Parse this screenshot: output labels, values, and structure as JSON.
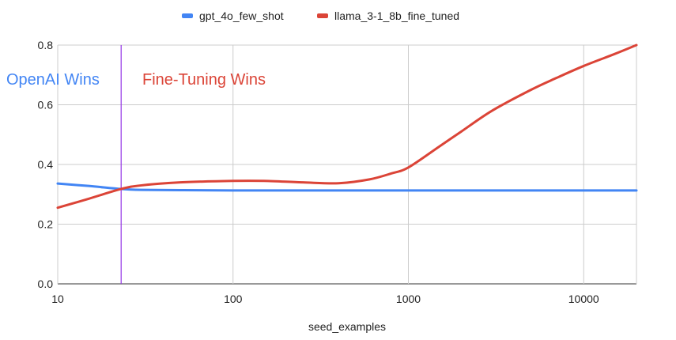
{
  "chart_data": {
    "type": "line",
    "x_scale": "log",
    "xlabel": "seed_examples",
    "ylabel": "",
    "xlim": [
      10,
      20000
    ],
    "ylim": [
      0,
      0.8
    ],
    "x_ticks": [
      10,
      100,
      1000,
      10000
    ],
    "x_tick_labels": [
      "10",
      "100",
      "1000",
      "10000"
    ],
    "y_ticks": [
      0,
      0.2,
      0.4,
      0.6,
      0.8
    ],
    "y_tick_labels": [
      "0.0",
      "0.2",
      "0.4",
      "0.6",
      "0.8"
    ],
    "grid": true,
    "legend_position": "top-center",
    "series": [
      {
        "name": "gpt_4o_few_shot",
        "color": "#4285f4",
        "x": [
          10,
          15,
          23,
          30,
          50,
          100,
          300,
          1000,
          3000,
          10000,
          20000
        ],
        "y": [
          0.336,
          0.328,
          0.318,
          0.315,
          0.314,
          0.313,
          0.313,
          0.313,
          0.313,
          0.313,
          0.313
        ]
      },
      {
        "name": "llama_3-1_8b_fine_tuned",
        "color": "#db4437",
        "x": [
          10,
          15,
          23,
          30,
          50,
          100,
          150,
          250,
          400,
          600,
          800,
          1000,
          1500,
          2000,
          3000,
          5000,
          7000,
          10000,
          15000,
          20000
        ],
        "y": [
          0.255,
          0.285,
          0.318,
          0.33,
          0.34,
          0.345,
          0.345,
          0.34,
          0.337,
          0.35,
          0.37,
          0.39,
          0.46,
          0.51,
          0.58,
          0.65,
          0.69,
          0.73,
          0.77,
          0.8
        ]
      }
    ],
    "vertical_marker": {
      "x": 23,
      "color": "#9334e6"
    },
    "annotations": [
      {
        "text": "OpenAI Wins",
        "color": "#4285f4"
      },
      {
        "text": "Fine-Tuning Wins",
        "color": "#db4437"
      }
    ]
  }
}
